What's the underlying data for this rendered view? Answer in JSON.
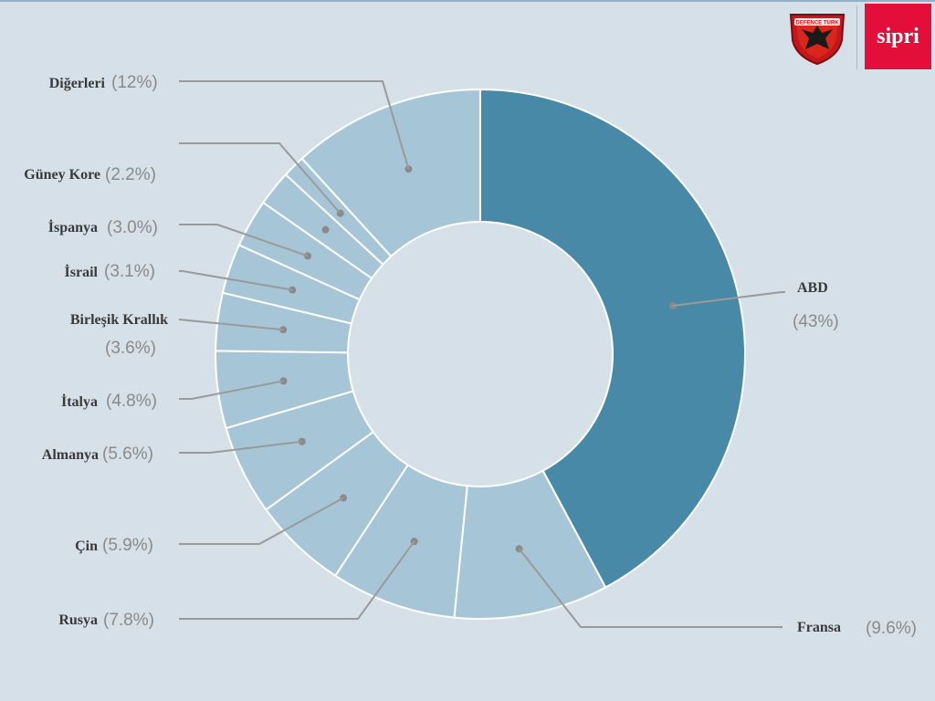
{
  "logos": {
    "defence": "DEFENCE TURK",
    "sipri": "sipri"
  },
  "chart_data": {
    "type": "pie",
    "variant": "donut",
    "title": "",
    "slices": [
      {
        "label": "ABD",
        "pct_text": "(43%)",
        "value": 43.0,
        "color": "#4789a6"
      },
      {
        "label": "Fransa",
        "pct_text": "(9.6%)",
        "value": 9.6,
        "color": "#a6c6d7"
      },
      {
        "label": "Rusya",
        "pct_text": "(7.8%)",
        "value": 7.8,
        "color": "#a6c6d7"
      },
      {
        "label": "Çin",
        "pct_text": "(5.9%)",
        "value": 5.9,
        "color": "#a6c6d7"
      },
      {
        "label": "Almanya",
        "pct_text": "(5.6%)",
        "value": 5.6,
        "color": "#a6c6d7"
      },
      {
        "label": "İtalya",
        "pct_text": "(4.8%)",
        "value": 4.8,
        "color": "#a6c6d7"
      },
      {
        "label": "Birleşik Krallık",
        "pct_text": "(3.6%)",
        "value": 3.6,
        "color": "#a6c6d7"
      },
      {
        "label": "İsrail",
        "pct_text": "(3.1%)",
        "value": 3.1,
        "color": "#a6c6d7"
      },
      {
        "label": "İspanya",
        "pct_text": "(3.0%)",
        "value": 3.0,
        "color": "#a6c6d7"
      },
      {
        "label": "Güney Kore",
        "pct_text": "(2.2%)",
        "value": 2.2,
        "color": "#a6c6d7"
      },
      {
        "label": "",
        "pct_text": "",
        "value": 1.4,
        "color": "#a6c6d7"
      },
      {
        "label": "Diğerleri",
        "pct_text": "(12%)",
        "value": 12.0,
        "color": "#a6c6d7"
      }
    ]
  }
}
